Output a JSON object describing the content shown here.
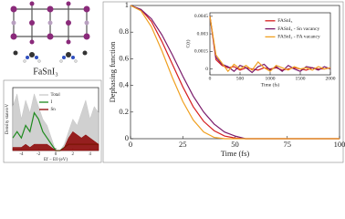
{
  "structure_label": "FaSnI₃",
  "chart_data": [
    {
      "type": "line",
      "ylabel": "Dephasing function",
      "xlabel": "Time (fs)",
      "x": [
        0,
        5,
        10,
        15,
        20,
        25,
        30,
        35,
        40,
        45,
        50,
        55,
        100
      ],
      "series": [
        {
          "name": "FASnI₃",
          "color": "#d62020",
          "values": [
            1,
            0.97,
            0.88,
            0.73,
            0.56,
            0.39,
            0.24,
            0.13,
            0.06,
            0.02,
            0.005,
            0,
            0
          ]
        },
        {
          "name": "FASnI₃ - Sn vacancy",
          "color": "#7a1a6a",
          "values": [
            1,
            0.97,
            0.9,
            0.78,
            0.63,
            0.47,
            0.32,
            0.2,
            0.11,
            0.05,
            0.02,
            0,
            0
          ]
        },
        {
          "name": "FASnI₃ - FA vacancy",
          "color": "#f0a020",
          "values": [
            1,
            0.96,
            0.84,
            0.66,
            0.46,
            0.28,
            0.14,
            0.05,
            0.01,
            0,
            0,
            0,
            0
          ]
        }
      ],
      "xlim": [
        0,
        100
      ],
      "ylim": [
        0,
        1
      ],
      "xticks": [
        0,
        25,
        50,
        75,
        100
      ],
      "yticks": [
        0,
        0.2,
        0.4,
        0.6,
        0.8,
        1
      ]
    },
    {
      "type": "line",
      "ylabel": "C(t)",
      "xlabel": "Time (fs)",
      "legend": "upper right",
      "x": [
        0,
        100,
        200,
        300,
        400,
        500,
        600,
        700,
        800,
        900,
        1000,
        1100,
        1200,
        1300,
        1400,
        1500,
        1600,
        1700,
        1800,
        1900,
        2000
      ],
      "series": [
        {
          "name": "FASnI₃",
          "color": "#d62020",
          "values": [
            0.0045,
            0.0008,
            0.0003,
            0.0001,
            0.0002,
            -0.0001,
            0.0001,
            0,
            -0.0001,
            0.0001,
            0,
            0.0001,
            -0.0001,
            0,
            0.0001,
            0,
            -0.0001,
            0.0001,
            0,
            0,
            0.0001
          ]
        },
        {
          "name": "FASnI₃ - Sn vacancy",
          "color": "#7a1a6a",
          "values": [
            0.0045,
            0.001,
            0.0004,
            0.0002,
            -0.0002,
            0.0003,
            0.0001,
            -0.0003,
            0.0002,
            0.0004,
            -0.0001,
            0.0002,
            -0.0002,
            0.0003,
            0,
            -0.0002,
            0.0002,
            0.0001,
            -0.0001,
            0.0002,
            0
          ]
        },
        {
          "name": "FASnI₃ - FA vacancy",
          "color": "#f0a020",
          "values": [
            0.0045,
            0.0012,
            0.0005,
            -0.0002,
            0.0004,
            0,
            0.0003,
            -0.0001,
            0.0006,
            0.0001,
            -0.0002,
            0.0003,
            0.0001,
            -0.0001,
            0.0002,
            0,
            0.0001,
            -0.0001,
            0.0002,
            0,
            0.0001
          ]
        }
      ],
      "xlim": [
        0,
        2000
      ],
      "ylim": [
        -0.0005,
        0.0048
      ],
      "xticks": [
        0,
        500,
        1000,
        1500,
        2000
      ],
      "yticks": [
        0,
        0.0015,
        0.003,
        0.0045
      ]
    },
    {
      "type": "line",
      "ylabel": "Density state/eV",
      "xlabel": "Ef − E0 (eV)",
      "legend": "upper right",
      "x": [
        -5,
        -4.5,
        -4,
        -3.5,
        -3,
        -2.5,
        -2,
        -1.5,
        -1,
        -0.5,
        0,
        0.5,
        1,
        1.5,
        2,
        2.5,
        3,
        3.5,
        4,
        4.5,
        5
      ],
      "series": [
        {
          "name": "Total",
          "color": "#c8c8c8",
          "area": true,
          "values": [
            0.7,
            0.9,
            0.5,
            0.8,
            0.6,
            0.9,
            0.7,
            0.5,
            0.4,
            0.2,
            0,
            0,
            0.1,
            0.3,
            0.5,
            0.4,
            0.6,
            0.8,
            0.5,
            0.7,
            0.6
          ]
        },
        {
          "name": "I",
          "color": "#1e8a1e",
          "values": [
            0.2,
            0.3,
            0.2,
            0.4,
            0.3,
            0.6,
            0.5,
            0.3,
            0.2,
            0.1,
            0,
            0,
            0.05,
            0.1,
            0.1,
            0.1,
            0.1,
            0.1,
            0.1,
            0.1,
            0.1
          ]
        },
        {
          "name": "Sn",
          "color": "#8b0000",
          "area": true,
          "values": [
            0.05,
            0.05,
            0.05,
            0.1,
            0.05,
            0.1,
            0.1,
            0.1,
            0.1,
            0.05,
            0,
            0,
            0.05,
            0.2,
            0.3,
            0.25,
            0.2,
            0.25,
            0.2,
            0.15,
            0.1
          ]
        }
      ],
      "xlim": [
        -5,
        5
      ],
      "ylim": [
        0,
        1
      ],
      "xticks": [
        -4,
        -2,
        0,
        2,
        4
      ]
    }
  ]
}
